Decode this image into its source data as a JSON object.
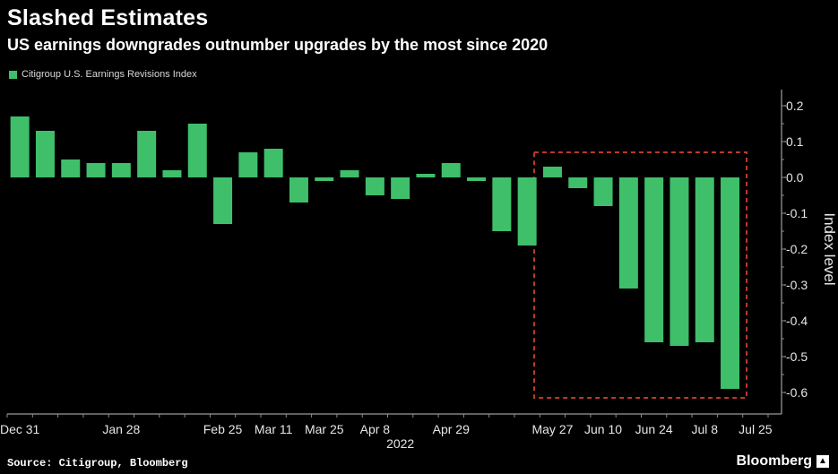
{
  "title": "Slashed Estimates",
  "subtitle": "US earnings downgrades outnumber upgrades by the most since 2020",
  "legend_label": "Citigroup U.S. Earnings Revisions Index",
  "source": "Source: Citigroup, Bloomberg",
  "brand": "Bloomberg",
  "brand_icon": "bloomberg-logo-icon",
  "colors": {
    "bar": "#3fbf6a",
    "background": "#000000",
    "highlight_box": "#c0392b",
    "grid": "#4a4a4a"
  },
  "chart_data": {
    "type": "bar",
    "title": "Slashed Estimates",
    "subtitle": "US earnings downgrades outnumber upgrades by the most since 2020",
    "ylabel": "Index level",
    "yaxis_position": "right",
    "ylim": [
      -0.65,
      0.23
    ],
    "yticks": [
      0.2,
      0.1,
      0.0,
      -0.1,
      -0.2,
      -0.3,
      -0.4,
      -0.5,
      -0.6
    ],
    "ytick_labels": [
      "0.2",
      "0.1",
      "0.0",
      "-0.1",
      "-0.2",
      "-0.3",
      "-0.4",
      "-0.5",
      "-0.6"
    ],
    "xtick_labels": [
      {
        "label": "Dec 31",
        "index": 0.5
      },
      {
        "label": "Jan 28",
        "index": 4.5
      },
      {
        "label": "Feb 25",
        "index": 8.5
      },
      {
        "label": "Mar 11",
        "index": 10.5
      },
      {
        "label": "Mar 25",
        "index": 12.5
      },
      {
        "label": "Apr 8",
        "index": 14.5
      },
      {
        "label": "Apr 29",
        "index": 17.5
      },
      {
        "label": "May 27",
        "index": 21.5
      },
      {
        "label": "Jun 10",
        "index": 23.5
      },
      {
        "label": "Jun 24",
        "index": 25.5
      },
      {
        "label": "Jul 8",
        "index": 27.5
      },
      {
        "label": "Jul 25",
        "index": 29.5
      }
    ],
    "year_label": "2022",
    "year_label_index": 15.5,
    "series": [
      {
        "name": "Citigroup U.S. Earnings Revisions Index",
        "values": [
          0.17,
          0.13,
          0.05,
          0.04,
          0.04,
          0.13,
          0.02,
          0.15,
          -0.13,
          0.07,
          0.08,
          -0.07,
          -0.01,
          0.02,
          -0.05,
          -0.06,
          0.01,
          0.04,
          -0.01,
          -0.15,
          -0.19,
          0.03,
          -0.03,
          -0.08,
          -0.31,
          -0.46,
          -0.47,
          -0.46,
          -0.59
        ]
      }
    ],
    "highlight": {
      "from_index": 21,
      "to_index": 28,
      "style": "dashed-box"
    },
    "grid": false,
    "legend_position": "top-left"
  }
}
